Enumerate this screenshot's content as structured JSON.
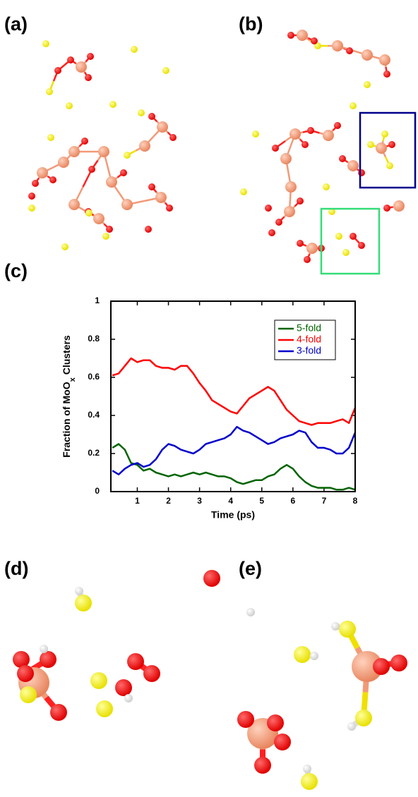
{
  "panels": [
    "(a)",
    "(b)",
    "(c)",
    "(d)",
    "(e)"
  ],
  "chart_data": {
    "type": "line",
    "xlabel": "Time (ps)",
    "ylabel": {
      "text": "Fraction of MoO",
      "subscript": "x",
      "suffix": "Clusters"
    },
    "x": [
      0.2,
      0.4,
      0.6,
      0.8,
      1.0,
      1.2,
      1.4,
      1.6,
      1.8,
      2.0,
      2.2,
      2.4,
      2.6,
      2.8,
      3.0,
      3.2,
      3.4,
      3.6,
      3.8,
      4.0,
      4.2,
      4.4,
      4.6,
      4.8,
      5.0,
      5.2,
      5.4,
      5.6,
      5.8,
      6.0,
      6.2,
      6.4,
      6.6,
      6.8,
      7.0,
      7.2,
      7.4,
      7.6,
      7.8,
      8.0
    ],
    "series": [
      {
        "name": "5-fold",
        "color": "#006400",
        "values": [
          0.23,
          0.25,
          0.22,
          0.15,
          0.14,
          0.11,
          0.12,
          0.1,
          0.09,
          0.08,
          0.09,
          0.08,
          0.09,
          0.1,
          0.09,
          0.1,
          0.09,
          0.08,
          0.08,
          0.07,
          0.05,
          0.04,
          0.05,
          0.06,
          0.06,
          0.08,
          0.09,
          0.12,
          0.14,
          0.12,
          0.08,
          0.05,
          0.03,
          0.02,
          0.02,
          0.02,
          0.01,
          0.01,
          0.02,
          0.01
        ]
      },
      {
        "name": "4-fold",
        "color": "#ff0000",
        "values": [
          0.61,
          0.62,
          0.66,
          0.7,
          0.68,
          0.69,
          0.69,
          0.66,
          0.65,
          0.65,
          0.64,
          0.66,
          0.66,
          0.62,
          0.57,
          0.53,
          0.48,
          0.46,
          0.44,
          0.42,
          0.41,
          0.45,
          0.49,
          0.51,
          0.53,
          0.55,
          0.53,
          0.48,
          0.43,
          0.4,
          0.37,
          0.36,
          0.35,
          0.36,
          0.36,
          0.36,
          0.37,
          0.38,
          0.36,
          0.44
        ]
      },
      {
        "name": "3-fold",
        "color": "#0000cd",
        "values": [
          0.11,
          0.09,
          0.12,
          0.14,
          0.15,
          0.13,
          0.14,
          0.17,
          0.22,
          0.25,
          0.24,
          0.22,
          0.21,
          0.2,
          0.22,
          0.25,
          0.26,
          0.27,
          0.28,
          0.3,
          0.34,
          0.32,
          0.31,
          0.29,
          0.27,
          0.25,
          0.26,
          0.28,
          0.29,
          0.3,
          0.32,
          0.31,
          0.26,
          0.23,
          0.23,
          0.22,
          0.2,
          0.2,
          0.23,
          0.31
        ]
      }
    ],
    "xlim": [
      0.15,
      8
    ],
    "xticks": [
      1,
      2,
      3,
      4,
      5,
      6,
      7,
      8
    ],
    "ylim": [
      0,
      1
    ],
    "yticks": [
      0,
      0.2,
      0.4,
      0.6,
      0.8,
      1
    ],
    "grid": false,
    "legend": "upper right"
  }
}
